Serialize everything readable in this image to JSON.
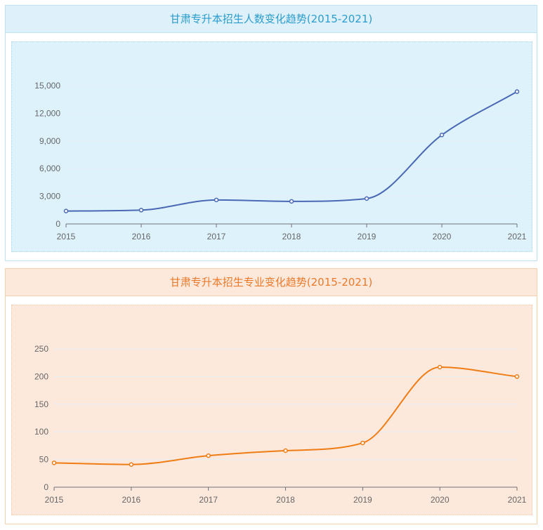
{
  "chart_data": [
    {
      "type": "line",
      "title": "甘肃专升本招生人数变化趋势(2015-2021)",
      "categories": [
        "2015",
        "2016",
        "2017",
        "2018",
        "2019",
        "2020",
        "2021"
      ],
      "series": [
        {
          "values": [
            1400,
            1500,
            2600,
            2450,
            2750,
            9650,
            14350
          ]
        }
      ],
      "ylim": [
        0,
        15000
      ],
      "yticks": [
        0,
        3000,
        6000,
        9000,
        12000,
        15000
      ],
      "ytick_labels": [
        "0",
        "3,000",
        "6,000",
        "9,000",
        "12,000",
        "15,000"
      ],
      "grid": true,
      "smooth": true,
      "color": "#4a69b5"
    },
    {
      "type": "line",
      "title": "甘肃专升本招生专业变化趋势(2015-2021)",
      "categories": [
        "2015",
        "2016",
        "2017",
        "2018",
        "2019",
        "2020",
        "2021"
      ],
      "series": [
        {
          "values": [
            44,
            41,
            57,
            66,
            80,
            217,
            200
          ]
        }
      ],
      "ylim": [
        0,
        250
      ],
      "yticks": [
        0,
        50,
        100,
        150,
        200,
        250
      ],
      "ytick_labels": [
        "0",
        "50",
        "100",
        "150",
        "200",
        "250"
      ],
      "grid": true,
      "smooth": true,
      "color": "#ef7c14"
    }
  ]
}
